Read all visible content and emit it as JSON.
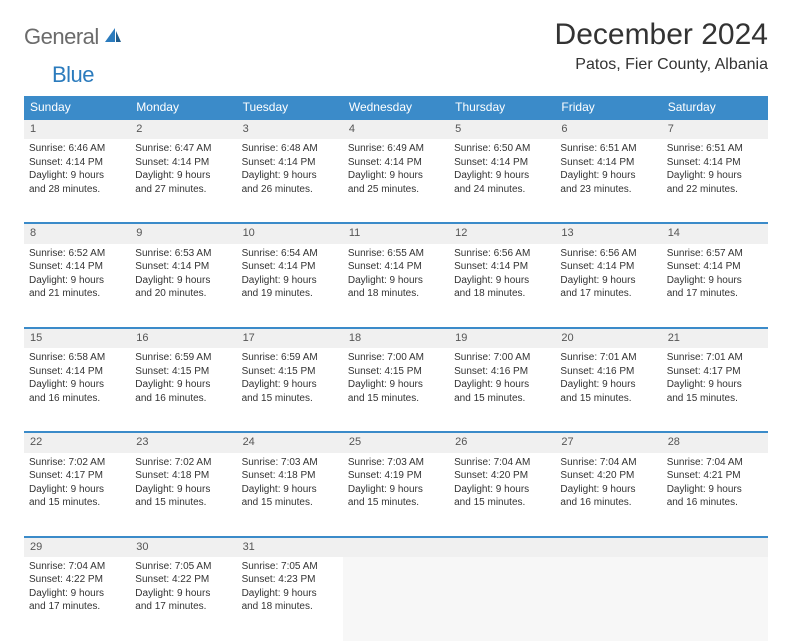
{
  "logo": {
    "text_gray": "General",
    "text_blue": "Blue"
  },
  "title": "December 2024",
  "location": "Patos, Fier County, Albania",
  "colors": {
    "header_bg": "#3b8bc9",
    "header_text": "#ffffff",
    "daynum_bg": "#f0f0f0",
    "body_text": "#333333",
    "logo_gray": "#6b6b6b",
    "logo_blue": "#2b7bbd"
  },
  "day_headers": [
    "Sunday",
    "Monday",
    "Tuesday",
    "Wednesday",
    "Thursday",
    "Friday",
    "Saturday"
  ],
  "weeks": [
    [
      {
        "n": "1",
        "sr": "Sunrise: 6:46 AM",
        "ss": "Sunset: 4:14 PM",
        "d1": "Daylight: 9 hours",
        "d2": "and 28 minutes."
      },
      {
        "n": "2",
        "sr": "Sunrise: 6:47 AM",
        "ss": "Sunset: 4:14 PM",
        "d1": "Daylight: 9 hours",
        "d2": "and 27 minutes."
      },
      {
        "n": "3",
        "sr": "Sunrise: 6:48 AM",
        "ss": "Sunset: 4:14 PM",
        "d1": "Daylight: 9 hours",
        "d2": "and 26 minutes."
      },
      {
        "n": "4",
        "sr": "Sunrise: 6:49 AM",
        "ss": "Sunset: 4:14 PM",
        "d1": "Daylight: 9 hours",
        "d2": "and 25 minutes."
      },
      {
        "n": "5",
        "sr": "Sunrise: 6:50 AM",
        "ss": "Sunset: 4:14 PM",
        "d1": "Daylight: 9 hours",
        "d2": "and 24 minutes."
      },
      {
        "n": "6",
        "sr": "Sunrise: 6:51 AM",
        "ss": "Sunset: 4:14 PM",
        "d1": "Daylight: 9 hours",
        "d2": "and 23 minutes."
      },
      {
        "n": "7",
        "sr": "Sunrise: 6:51 AM",
        "ss": "Sunset: 4:14 PM",
        "d1": "Daylight: 9 hours",
        "d2": "and 22 minutes."
      }
    ],
    [
      {
        "n": "8",
        "sr": "Sunrise: 6:52 AM",
        "ss": "Sunset: 4:14 PM",
        "d1": "Daylight: 9 hours",
        "d2": "and 21 minutes."
      },
      {
        "n": "9",
        "sr": "Sunrise: 6:53 AM",
        "ss": "Sunset: 4:14 PM",
        "d1": "Daylight: 9 hours",
        "d2": "and 20 minutes."
      },
      {
        "n": "10",
        "sr": "Sunrise: 6:54 AM",
        "ss": "Sunset: 4:14 PM",
        "d1": "Daylight: 9 hours",
        "d2": "and 19 minutes."
      },
      {
        "n": "11",
        "sr": "Sunrise: 6:55 AM",
        "ss": "Sunset: 4:14 PM",
        "d1": "Daylight: 9 hours",
        "d2": "and 18 minutes."
      },
      {
        "n": "12",
        "sr": "Sunrise: 6:56 AM",
        "ss": "Sunset: 4:14 PM",
        "d1": "Daylight: 9 hours",
        "d2": "and 18 minutes."
      },
      {
        "n": "13",
        "sr": "Sunrise: 6:56 AM",
        "ss": "Sunset: 4:14 PM",
        "d1": "Daylight: 9 hours",
        "d2": "and 17 minutes."
      },
      {
        "n": "14",
        "sr": "Sunrise: 6:57 AM",
        "ss": "Sunset: 4:14 PM",
        "d1": "Daylight: 9 hours",
        "d2": "and 17 minutes."
      }
    ],
    [
      {
        "n": "15",
        "sr": "Sunrise: 6:58 AM",
        "ss": "Sunset: 4:14 PM",
        "d1": "Daylight: 9 hours",
        "d2": "and 16 minutes."
      },
      {
        "n": "16",
        "sr": "Sunrise: 6:59 AM",
        "ss": "Sunset: 4:15 PM",
        "d1": "Daylight: 9 hours",
        "d2": "and 16 minutes."
      },
      {
        "n": "17",
        "sr": "Sunrise: 6:59 AM",
        "ss": "Sunset: 4:15 PM",
        "d1": "Daylight: 9 hours",
        "d2": "and 15 minutes."
      },
      {
        "n": "18",
        "sr": "Sunrise: 7:00 AM",
        "ss": "Sunset: 4:15 PM",
        "d1": "Daylight: 9 hours",
        "d2": "and 15 minutes."
      },
      {
        "n": "19",
        "sr": "Sunrise: 7:00 AM",
        "ss": "Sunset: 4:16 PM",
        "d1": "Daylight: 9 hours",
        "d2": "and 15 minutes."
      },
      {
        "n": "20",
        "sr": "Sunrise: 7:01 AM",
        "ss": "Sunset: 4:16 PM",
        "d1": "Daylight: 9 hours",
        "d2": "and 15 minutes."
      },
      {
        "n": "21",
        "sr": "Sunrise: 7:01 AM",
        "ss": "Sunset: 4:17 PM",
        "d1": "Daylight: 9 hours",
        "d2": "and 15 minutes."
      }
    ],
    [
      {
        "n": "22",
        "sr": "Sunrise: 7:02 AM",
        "ss": "Sunset: 4:17 PM",
        "d1": "Daylight: 9 hours",
        "d2": "and 15 minutes."
      },
      {
        "n": "23",
        "sr": "Sunrise: 7:02 AM",
        "ss": "Sunset: 4:18 PM",
        "d1": "Daylight: 9 hours",
        "d2": "and 15 minutes."
      },
      {
        "n": "24",
        "sr": "Sunrise: 7:03 AM",
        "ss": "Sunset: 4:18 PM",
        "d1": "Daylight: 9 hours",
        "d2": "and 15 minutes."
      },
      {
        "n": "25",
        "sr": "Sunrise: 7:03 AM",
        "ss": "Sunset: 4:19 PM",
        "d1": "Daylight: 9 hours",
        "d2": "and 15 minutes."
      },
      {
        "n": "26",
        "sr": "Sunrise: 7:04 AM",
        "ss": "Sunset: 4:20 PM",
        "d1": "Daylight: 9 hours",
        "d2": "and 15 minutes."
      },
      {
        "n": "27",
        "sr": "Sunrise: 7:04 AM",
        "ss": "Sunset: 4:20 PM",
        "d1": "Daylight: 9 hours",
        "d2": "and 16 minutes."
      },
      {
        "n": "28",
        "sr": "Sunrise: 7:04 AM",
        "ss": "Sunset: 4:21 PM",
        "d1": "Daylight: 9 hours",
        "d2": "and 16 minutes."
      }
    ],
    [
      {
        "n": "29",
        "sr": "Sunrise: 7:04 AM",
        "ss": "Sunset: 4:22 PM",
        "d1": "Daylight: 9 hours",
        "d2": "and 17 minutes."
      },
      {
        "n": "30",
        "sr": "Sunrise: 7:05 AM",
        "ss": "Sunset: 4:22 PM",
        "d1": "Daylight: 9 hours",
        "d2": "and 17 minutes."
      },
      {
        "n": "31",
        "sr": "Sunrise: 7:05 AM",
        "ss": "Sunset: 4:23 PM",
        "d1": "Daylight: 9 hours",
        "d2": "and 18 minutes."
      },
      null,
      null,
      null,
      null
    ]
  ]
}
